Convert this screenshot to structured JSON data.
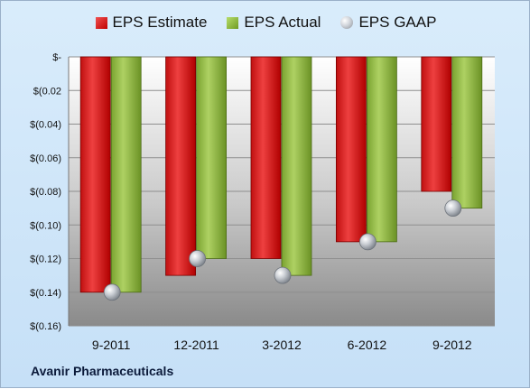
{
  "legend": {
    "estimate": "EPS Estimate",
    "actual": "EPS Actual",
    "gaap": "EPS GAAP"
  },
  "company": "Avanir Pharmaceuticals",
  "colors": {
    "estimate": "#d42020",
    "actual": "#8db83c",
    "gaap": "#c8ccd2",
    "background": "#cfe6fa"
  },
  "chart_data": {
    "type": "bar",
    "categories": [
      "9-2011",
      "12-2011",
      "3-2012",
      "6-2012",
      "9-2012"
    ],
    "series": [
      {
        "name": "EPS Estimate",
        "values": [
          -0.14,
          -0.13,
          -0.12,
          -0.11,
          -0.08
        ]
      },
      {
        "name": "EPS Actual",
        "values": [
          -0.14,
          -0.12,
          -0.13,
          -0.11,
          -0.09
        ]
      },
      {
        "name": "EPS GAAP",
        "values": [
          -0.14,
          -0.12,
          -0.13,
          -0.11,
          -0.09
        ],
        "style": "point"
      }
    ],
    "ylim": [
      -0.16,
      0
    ],
    "yticks": [
      "$-",
      "$(0.02",
      "$(0.04)",
      "$(0.06)",
      "$(0.08)",
      "$(0.10)",
      "$(0.12)",
      "$(0.14)",
      "$(0.16)"
    ],
    "grid": true,
    "legend_position": "top"
  }
}
